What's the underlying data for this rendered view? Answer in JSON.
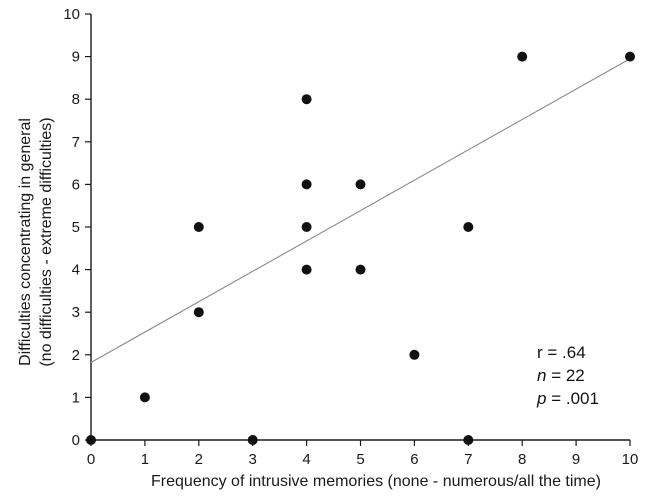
{
  "chart_data": {
    "type": "scatter",
    "title": "",
    "xlabel": "Frequency of intrusive memories (none - numerous/all the time)",
    "ylabel_line1": "Difficulties concentrating in general",
    "ylabel_line2": "(no difficulties - extreme difficulties)",
    "xlim": [
      0,
      10
    ],
    "ylim": [
      0,
      10
    ],
    "xticks": [
      "0",
      "1",
      "2",
      "3",
      "4",
      "5",
      "6",
      "7",
      "8",
      "9",
      "10"
    ],
    "yticks": [
      "0",
      "1",
      "2",
      "3",
      "4",
      "5",
      "6",
      "7",
      "8",
      "9",
      "10"
    ],
    "grid": false,
    "points": [
      {
        "x": 0,
        "y": 0
      },
      {
        "x": 1,
        "y": 1
      },
      {
        "x": 2,
        "y": 5
      },
      {
        "x": 2,
        "y": 3
      },
      {
        "x": 3,
        "y": 0
      },
      {
        "x": 4,
        "y": 8
      },
      {
        "x": 4,
        "y": 6
      },
      {
        "x": 4,
        "y": 5
      },
      {
        "x": 4,
        "y": 4
      },
      {
        "x": 5,
        "y": 6
      },
      {
        "x": 5,
        "y": 4
      },
      {
        "x": 6,
        "y": 2
      },
      {
        "x": 7,
        "y": 5
      },
      {
        "x": 7,
        "y": 0
      },
      {
        "x": 8,
        "y": 9
      },
      {
        "x": 10,
        "y": 9
      }
    ],
    "trendline": {
      "x": [
        0,
        10
      ],
      "y": [
        1.82,
        8.95
      ]
    },
    "annotations": {
      "r_text": "r = .64",
      "n_var": "n",
      "n_rest": " = 22",
      "p_var": "p",
      "p_rest": " = .001"
    },
    "colors": {
      "points": "#111111",
      "axis": "#1a1a1a",
      "trendline": "#8a8a8a"
    }
  }
}
